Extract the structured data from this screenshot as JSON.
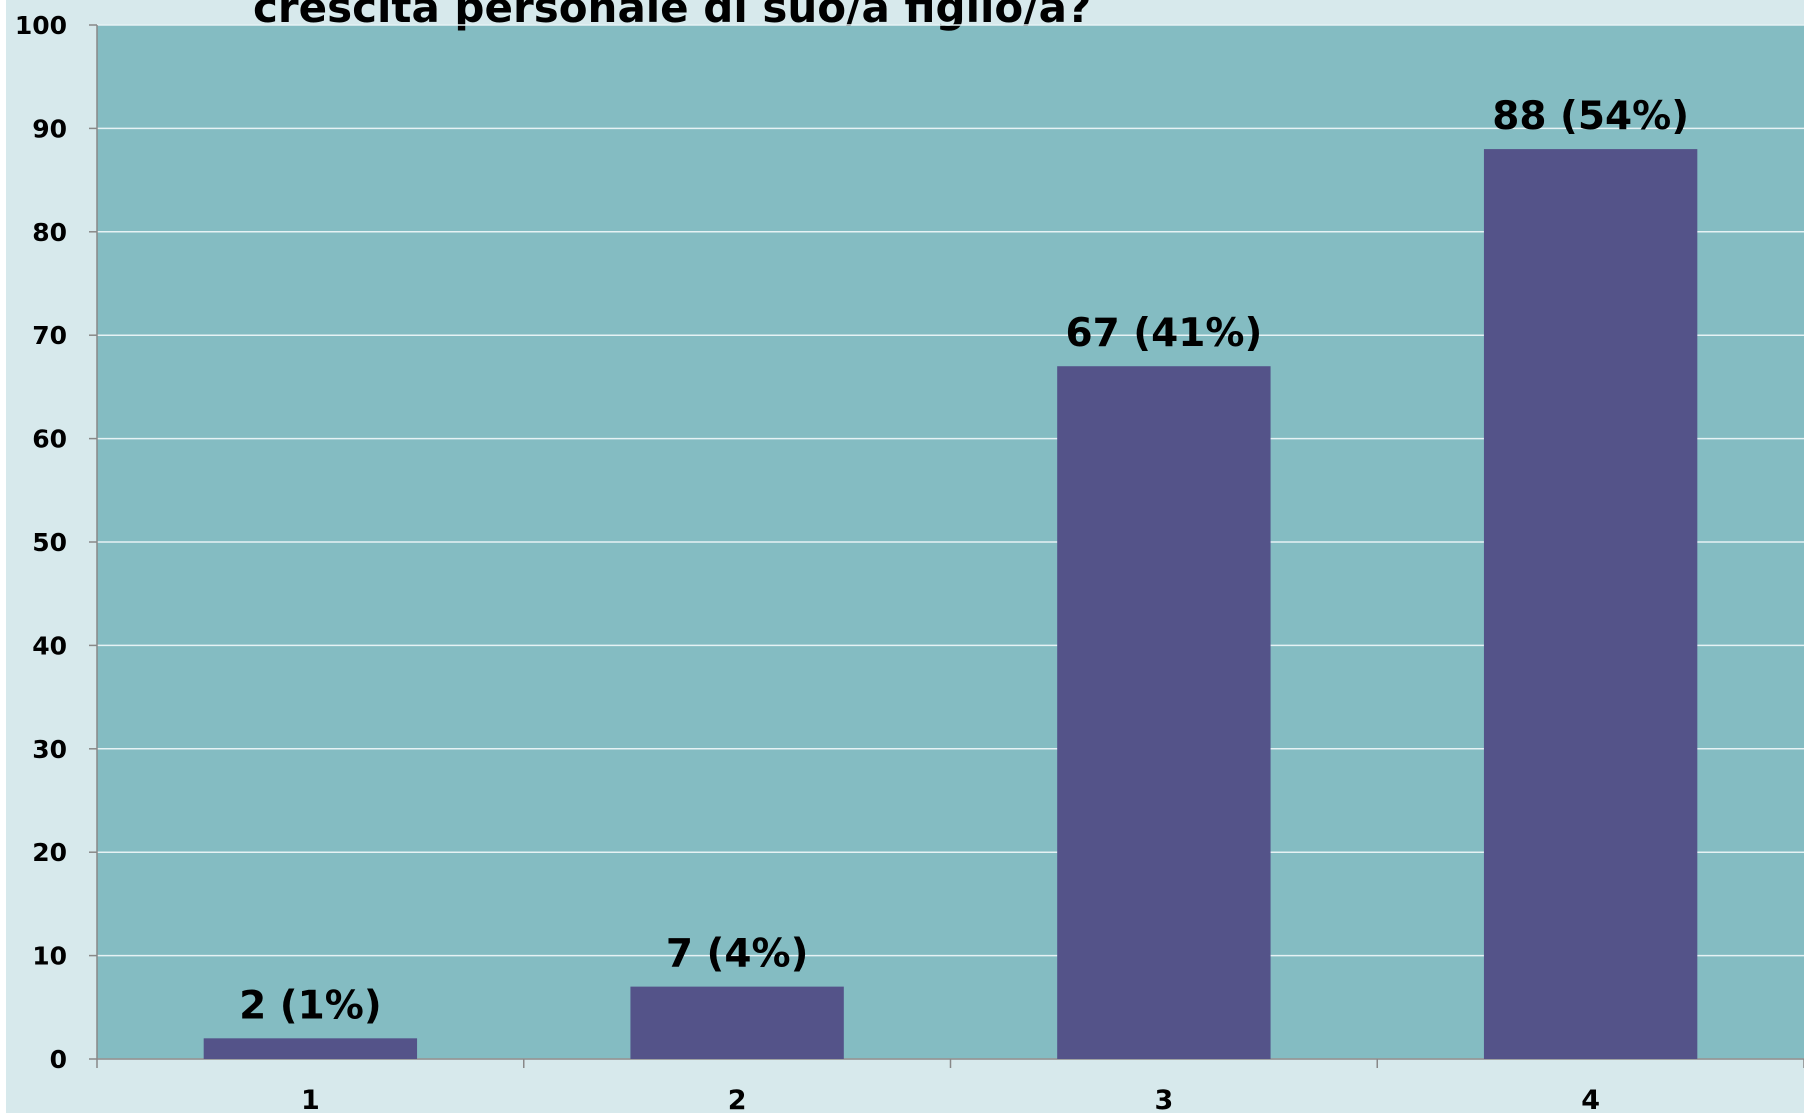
{
  "chart_data": {
    "type": "bar",
    "title": "crescita personale di suo/a figlio/a?",
    "categories": [
      "1",
      "2",
      "3",
      "4"
    ],
    "values": [
      2,
      7,
      67,
      88
    ],
    "value_labels": [
      "2 (1%)",
      "7 (4%)",
      "67 (41%)",
      "88 (54%)"
    ],
    "color": "#545389",
    "ylim": [
      0,
      100
    ],
    "yticks": [
      0,
      10,
      20,
      30,
      40,
      50,
      60,
      70,
      80,
      90,
      100
    ],
    "grid": true
  }
}
